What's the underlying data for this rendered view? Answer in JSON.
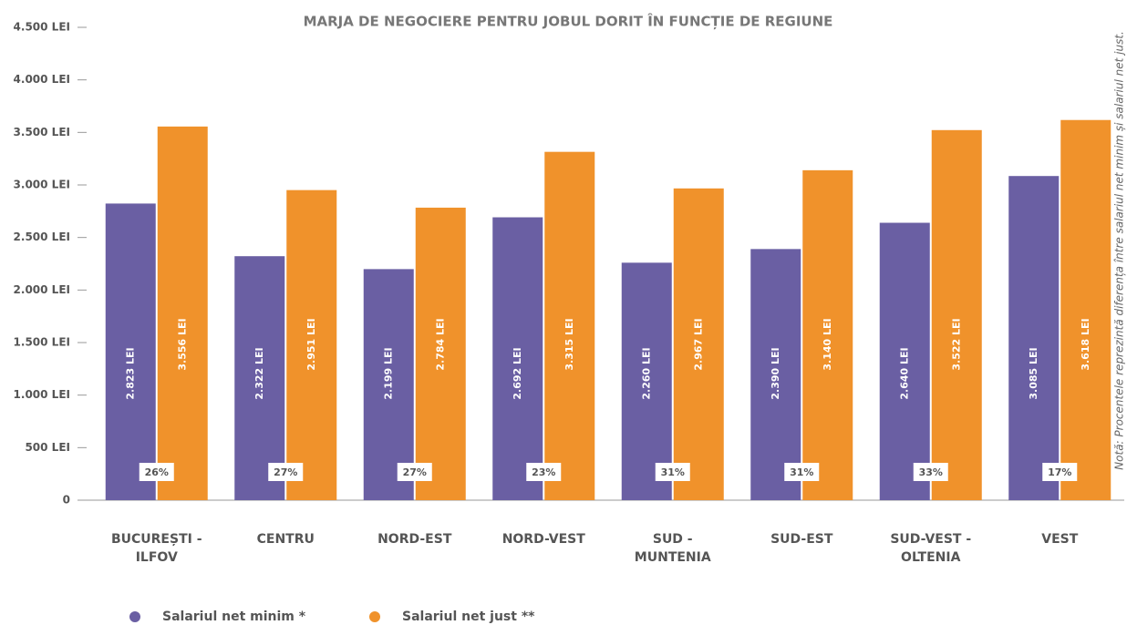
{
  "chart_data": {
    "type": "bar",
    "title": "MARJA DE NEGOCIERE PENTRU JOBUL DORIT ÎN FUNCȚIE DE REGIUNE",
    "note": "Notă: Procentele reprezintă diferența între salariul net minim și salariul net just.",
    "categories": [
      "BUCUREȘTI - ILFOV",
      "CENTRU",
      "NORD-EST",
      "NORD-VEST",
      "SUD - MUNTENIA",
      "SUD-EST",
      "SUD-VEST - OLTENIA",
      "VEST"
    ],
    "series": [
      {
        "name": "Salariul net minim *",
        "color": "#6a5fa3",
        "values": [
          2823,
          2322,
          2199,
          2692,
          2260,
          2390,
          2640,
          3085
        ],
        "value_labels": [
          "2.823 LEI",
          "2.322 LEI",
          "2.199 LEI",
          "2.692 LEI",
          "2.260 LEI",
          "2.390 LEI",
          "2.640 LEI",
          "3.085 LEI"
        ]
      },
      {
        "name": "Salariul net just **",
        "color": "#f0922b",
        "values": [
          3556,
          2951,
          2784,
          3315,
          2967,
          3140,
          3522,
          3618
        ],
        "value_labels": [
          "3.556 LEI",
          "2.951 LEI",
          "2.784 LEI",
          "3.315 LEI",
          "2.967 LEI",
          "3.140 LEI",
          "3.522 LEI",
          "3.618 LEI"
        ]
      }
    ],
    "margins": {
      "values": [
        26,
        27,
        27,
        23,
        31,
        31,
        33,
        17
      ],
      "value_labels": [
        "26%",
        "27%",
        "27%",
        "23%",
        "31%",
        "31%",
        "33%",
        "17%"
      ]
    },
    "ylim": [
      0,
      4500
    ],
    "yticks": [
      0,
      {
        "value": 500,
        "label": "500 LEI"
      },
      {
        "value": 1000,
        "label": "1.000 LEI"
      },
      {
        "value": 1500,
        "label": "1.500 LEI"
      },
      {
        "value": 2000,
        "label": "2.000 LEI"
      },
      {
        "value": 2500,
        "label": "2.500 LEI"
      },
      {
        "value": 3000,
        "label": "3.000 LEI"
      },
      {
        "value": 3500,
        "label": "3.500 LEI"
      },
      {
        "value": 4000,
        "label": "4.000 LEI"
      },
      {
        "value": 4500,
        "label": "4.500 LEI"
      }
    ]
  }
}
